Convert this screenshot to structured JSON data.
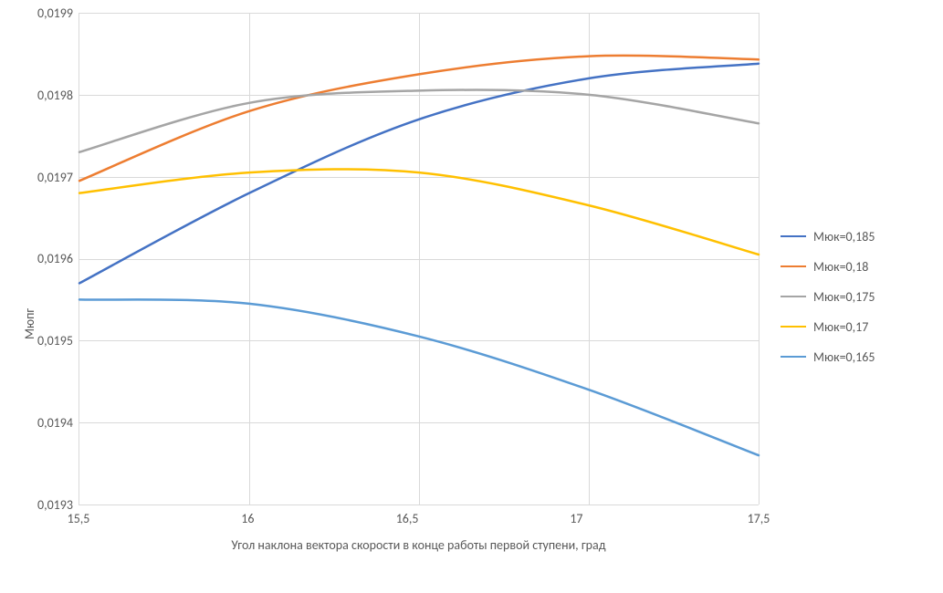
{
  "chart": {
    "type": "line",
    "background_color": "#ffffff",
    "grid_color": "#d9d9d9",
    "text_color": "#595959",
    "font_family": "Calibri",
    "tick_fontsize": 14,
    "axis_title_fontsize": 14,
    "x": {
      "title": "Угол наклона вектора скорости в конце работы первой ступени, град",
      "min": 15.5,
      "max": 17.5,
      "tick_step": 0.5,
      "tick_labels": [
        "15,5",
        "16",
        "16,5",
        "17",
        "17,5"
      ]
    },
    "y": {
      "title": "Мюпг",
      "min": 0.0193,
      "max": 0.0199,
      "tick_step": 0.0001,
      "tick_labels": [
        "0,0199",
        "0,0198",
        "0,0197",
        "0,0196",
        "0,0195",
        "0,0194",
        "0,0193"
      ]
    },
    "line_width": 2.5,
    "series": [
      {
        "name": "Мюк=0,185",
        "color": "#4472c4",
        "x": [
          15.5,
          16.0,
          16.5,
          17.0,
          17.5
        ],
        "y": [
          0.01957,
          0.01968,
          0.01977,
          0.01982,
          0.019838
        ]
      },
      {
        "name": "Мюк=0,18",
        "color": "#ed7d31",
        "x": [
          15.5,
          16.0,
          16.5,
          17.0,
          17.5
        ],
        "y": [
          0.019695,
          0.01978,
          0.019825,
          0.019847,
          0.019843
        ]
      },
      {
        "name": "Мюк=0,175",
        "color": "#a5a5a5",
        "x": [
          15.5,
          16.0,
          16.5,
          17.0,
          17.5
        ],
        "y": [
          0.01973,
          0.01979,
          0.019805,
          0.0198,
          0.019765
        ]
      },
      {
        "name": "Мюк=0,17",
        "color": "#ffc000",
        "x": [
          15.5,
          16.0,
          16.5,
          17.0,
          17.5
        ],
        "y": [
          0.01968,
          0.019705,
          0.019705,
          0.019665,
          0.019605
        ]
      },
      {
        "name": "Мюк=0,165",
        "color": "#5b9bd5",
        "x": [
          15.5,
          16.0,
          16.5,
          17.0,
          17.5
        ],
        "y": [
          0.01955,
          0.019545,
          0.019505,
          0.01944,
          0.01936
        ]
      }
    ]
  }
}
